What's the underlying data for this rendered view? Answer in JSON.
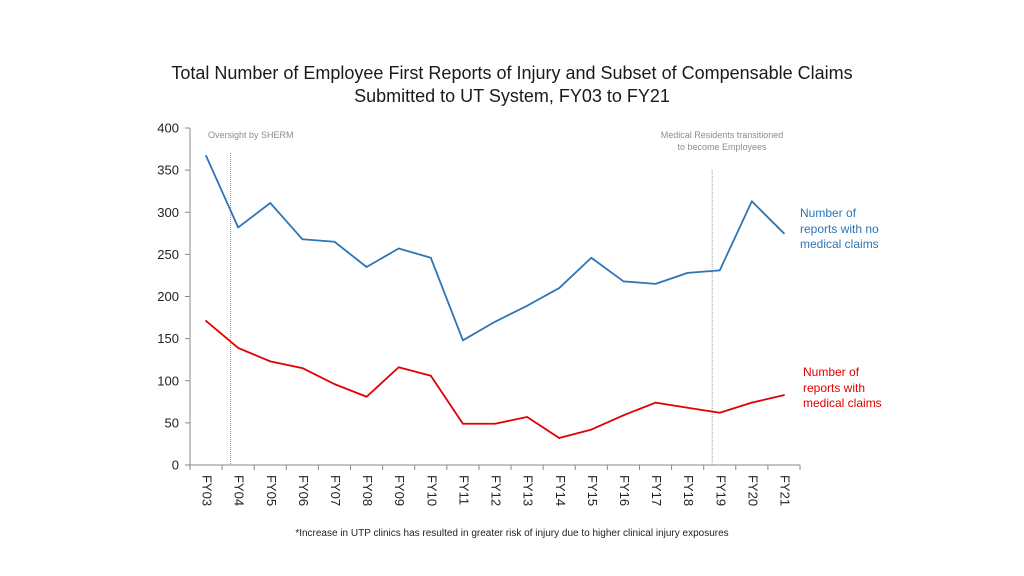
{
  "title_line1": "Total Number of Employee First Reports of Injury and Subset of Compensable Claims",
  "title_line2": "Submitted to UT System, FY03 to FY21",
  "footnote": "*Increase in UTP clinics has resulted in greater risk of injury due to higher clinical injury exposures",
  "chart_data": {
    "type": "line",
    "categories": [
      "FY03",
      "FY04",
      "FY05",
      "FY06",
      "FY07",
      "FY08",
      "FY09",
      "FY10",
      "FY11",
      "FY12",
      "FY13",
      "FY14",
      "FY15",
      "FY16",
      "FY17",
      "FY18",
      "FY19",
      "FY20",
      "FY21"
    ],
    "ylim": [
      0,
      400
    ],
    "yticks": [
      0,
      50,
      100,
      150,
      200,
      250,
      300,
      350,
      400
    ],
    "series": [
      {
        "name": "Number of reports with no medical claims",
        "legend_lines": [
          "Number of",
          "reports with no",
          "medical claims"
        ],
        "color": "#2e75b6",
        "values": [
          367,
          282,
          311,
          268,
          265,
          235,
          257,
          246,
          148,
          170,
          189,
          210,
          246,
          218,
          215,
          228,
          231,
          313,
          275
        ]
      },
      {
        "name": "Number of reports with medical claims",
        "legend_lines": [
          "Number of",
          "reports with",
          "medical claims"
        ],
        "color": "#e00000",
        "values": [
          171,
          139,
          123,
          115,
          96,
          81,
          116,
          106,
          49,
          49,
          57,
          32,
          42,
          59,
          74,
          68,
          62,
          74,
          83
        ]
      }
    ],
    "annotations": [
      {
        "text": "Oversight by SHERM",
        "at_category": "FY04"
      },
      {
        "text_lines": [
          "Medical Residents transitioned",
          "to become Employees"
        ],
        "at_category": "FY19"
      }
    ],
    "grid": false
  }
}
